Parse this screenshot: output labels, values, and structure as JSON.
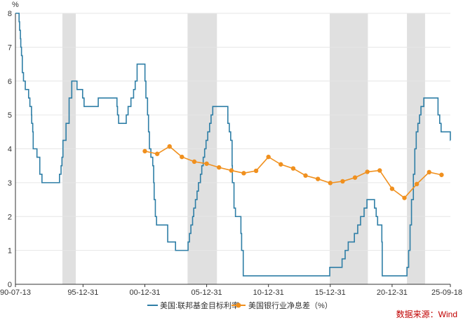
{
  "chart_data": {
    "type": "line",
    "unit_label": "%",
    "ylim": [
      0,
      8
    ],
    "y_ticks": [
      0,
      1,
      2,
      3,
      4,
      5,
      6,
      7,
      8
    ],
    "x_range": [
      "1990-07-13",
      "2025-09-18"
    ],
    "x_tick_labels": [
      {
        "date": "1990-07-13",
        "label": "90-07-13"
      },
      {
        "date": "1995-12-31",
        "label": "95-12-31"
      },
      {
        "date": "2000-12-31",
        "label": "00-12-31"
      },
      {
        "date": "2005-12-31",
        "label": "05-12-31"
      },
      {
        "date": "2010-12-31",
        "label": "10-12-31"
      },
      {
        "date": "2015-12-31",
        "label": "15-12-31"
      },
      {
        "date": "2020-12-31",
        "label": "20-12-31"
      },
      {
        "date": "2025-09-18",
        "label": "25-09-18"
      }
    ],
    "shaded_periods": [
      [
        "1994-05-01",
        "1995-06-01"
      ],
      [
        "2004-06-15",
        "2006-11-01"
      ],
      [
        "2015-12-15",
        "2019-01-15"
      ],
      [
        "2022-03-15",
        "2023-09-01"
      ]
    ],
    "grid": "horizontal",
    "legend_position": "bottom",
    "series": [
      {
        "name": "美国:联邦基金目标利率",
        "color": "#2e7ea6",
        "style": "step",
        "points": [
          [
            "1990-07-13",
            8.0
          ],
          [
            "1990-10-29",
            7.75
          ],
          [
            "1990-11-13",
            7.5
          ],
          [
            "1990-12-07",
            7.25
          ],
          [
            "1990-12-18",
            7.0
          ],
          [
            "1991-01-08",
            6.75
          ],
          [
            "1991-02-01",
            6.25
          ],
          [
            "1991-03-08",
            6.0
          ],
          [
            "1991-04-30",
            5.75
          ],
          [
            "1991-08-06",
            5.5
          ],
          [
            "1991-09-13",
            5.25
          ],
          [
            "1991-10-31",
            5.0
          ],
          [
            "1991-11-06",
            4.75
          ],
          [
            "1991-12-06",
            4.5
          ],
          [
            "1991-12-20",
            4.0
          ],
          [
            "1992-04-09",
            3.75
          ],
          [
            "1992-07-02",
            3.25
          ],
          [
            "1992-09-04",
            3.0
          ],
          [
            "1994-02-04",
            3.25
          ],
          [
            "1994-03-22",
            3.5
          ],
          [
            "1994-04-18",
            3.75
          ],
          [
            "1994-05-17",
            4.25
          ],
          [
            "1994-08-16",
            4.75
          ],
          [
            "1994-11-15",
            5.5
          ],
          [
            "1995-02-01",
            6.0
          ],
          [
            "1995-07-06",
            5.75
          ],
          [
            "1995-12-19",
            5.5
          ],
          [
            "1996-01-31",
            5.25
          ],
          [
            "1997-03-25",
            5.5
          ],
          [
            "1998-09-29",
            5.25
          ],
          [
            "1998-10-15",
            5.0
          ],
          [
            "1998-11-17",
            4.75
          ],
          [
            "1999-06-30",
            5.0
          ],
          [
            "1999-08-24",
            5.25
          ],
          [
            "1999-11-16",
            5.5
          ],
          [
            "2000-02-02",
            5.75
          ],
          [
            "2000-03-21",
            6.0
          ],
          [
            "2000-05-16",
            6.5
          ],
          [
            "2001-01-03",
            6.0
          ],
          [
            "2001-01-31",
            5.5
          ],
          [
            "2001-03-20",
            5.0
          ],
          [
            "2001-04-18",
            4.5
          ],
          [
            "2001-05-15",
            4.0
          ],
          [
            "2001-06-27",
            3.75
          ],
          [
            "2001-08-21",
            3.5
          ],
          [
            "2001-09-17",
            3.0
          ],
          [
            "2001-10-02",
            2.5
          ],
          [
            "2001-11-06",
            2.0
          ],
          [
            "2001-12-11",
            1.75
          ],
          [
            "2002-11-06",
            1.25
          ],
          [
            "2003-06-25",
            1.0
          ],
          [
            "2004-06-30",
            1.25
          ],
          [
            "2004-08-10",
            1.5
          ],
          [
            "2004-09-21",
            1.75
          ],
          [
            "2004-11-10",
            2.0
          ],
          [
            "2004-12-14",
            2.25
          ],
          [
            "2005-02-02",
            2.5
          ],
          [
            "2005-03-22",
            2.75
          ],
          [
            "2005-05-03",
            3.0
          ],
          [
            "2005-06-30",
            3.25
          ],
          [
            "2005-08-09",
            3.5
          ],
          [
            "2005-09-20",
            3.75
          ],
          [
            "2005-11-01",
            4.0
          ],
          [
            "2005-12-13",
            4.25
          ],
          [
            "2006-01-31",
            4.5
          ],
          [
            "2006-03-28",
            4.75
          ],
          [
            "2006-05-10",
            5.0
          ],
          [
            "2006-06-29",
            5.25
          ],
          [
            "2007-09-18",
            4.75
          ],
          [
            "2007-10-31",
            4.5
          ],
          [
            "2007-12-11",
            4.25
          ],
          [
            "2008-01-22",
            3.5
          ],
          [
            "2008-01-30",
            3.0
          ],
          [
            "2008-03-18",
            2.25
          ],
          [
            "2008-04-30",
            2.0
          ],
          [
            "2008-10-08",
            1.5
          ],
          [
            "2008-10-29",
            1.0
          ],
          [
            "2008-12-16",
            0.25
          ],
          [
            "2015-12-16",
            0.5
          ],
          [
            "2016-12-14",
            0.75
          ],
          [
            "2017-03-15",
            1.0
          ],
          [
            "2017-06-14",
            1.25
          ],
          [
            "2017-12-13",
            1.5
          ],
          [
            "2018-03-21",
            1.75
          ],
          [
            "2018-06-13",
            2.0
          ],
          [
            "2018-09-26",
            2.25
          ],
          [
            "2018-12-19",
            2.5
          ],
          [
            "2019-07-31",
            2.25
          ],
          [
            "2019-09-18",
            2.0
          ],
          [
            "2019-10-30",
            1.75
          ],
          [
            "2020-03-03",
            1.25
          ],
          [
            "2020-03-15",
            0.25
          ],
          [
            "2022-03-16",
            0.5
          ],
          [
            "2022-05-04",
            1.0
          ],
          [
            "2022-06-15",
            1.75
          ],
          [
            "2022-07-27",
            2.5
          ],
          [
            "2022-09-21",
            3.25
          ],
          [
            "2022-11-02",
            4.0
          ],
          [
            "2022-12-14",
            4.5
          ],
          [
            "2023-02-01",
            4.75
          ],
          [
            "2023-03-22",
            5.0
          ],
          [
            "2023-05-03",
            5.25
          ],
          [
            "2023-07-26",
            5.5
          ],
          [
            "2024-09-18",
            5.0
          ],
          [
            "2024-11-07",
            4.75
          ],
          [
            "2024-12-18",
            4.5
          ],
          [
            "2025-09-17",
            4.25
          ],
          [
            "2025-09-18",
            4.25
          ]
        ]
      },
      {
        "name": "美国银行业净息差（%）",
        "color": "#f0901e",
        "style": "line-markers",
        "points": [
          [
            "2000-12-31",
            3.93
          ],
          [
            "2001-12-31",
            3.85
          ],
          [
            "2002-12-31",
            4.07
          ],
          [
            "2003-12-31",
            3.76
          ],
          [
            "2004-12-31",
            3.62
          ],
          [
            "2005-12-31",
            3.56
          ],
          [
            "2006-12-31",
            3.45
          ],
          [
            "2007-12-31",
            3.36
          ],
          [
            "2008-12-31",
            3.28
          ],
          [
            "2009-12-31",
            3.35
          ],
          [
            "2010-12-31",
            3.76
          ],
          [
            "2011-12-31",
            3.54
          ],
          [
            "2012-12-31",
            3.42
          ],
          [
            "2013-12-31",
            3.21
          ],
          [
            "2014-12-31",
            3.11
          ],
          [
            "2015-12-31",
            2.99
          ],
          [
            "2016-12-31",
            3.04
          ],
          [
            "2017-12-31",
            3.15
          ],
          [
            "2018-12-31",
            3.32
          ],
          [
            "2019-12-31",
            3.36
          ],
          [
            "2020-12-31",
            2.82
          ],
          [
            "2021-12-31",
            2.55
          ],
          [
            "2022-12-31",
            2.96
          ],
          [
            "2023-12-31",
            3.31
          ],
          [
            "2024-12-31",
            3.23
          ]
        ]
      }
    ]
  },
  "source_note": "数据来源：Wind"
}
